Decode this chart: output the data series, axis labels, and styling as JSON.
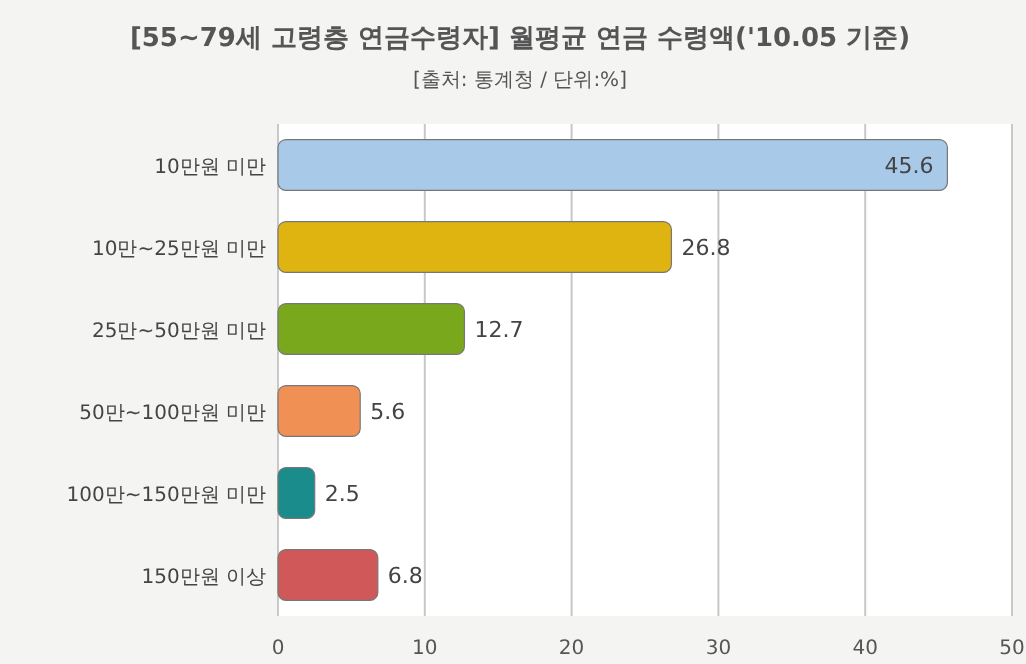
{
  "chart_data": {
    "type": "bar",
    "orientation": "horizontal",
    "title": "[55~79세 고령층 연금수령자] 월평균 연금 수령액('10.05 기준)",
    "subtitle": "[출처: 통계청 / 단위:%]",
    "categories": [
      "10만원 미만",
      "10만~25만원 미만",
      "25만~50만원 미만",
      "50만~100만원 미만",
      "100만~150만원 미만",
      "150만원 이상"
    ],
    "values": [
      45.6,
      26.8,
      12.7,
      5.6,
      2.5,
      6.8
    ],
    "colors": [
      "#a9c9e8",
      "#e0b410",
      "#7aa81c",
      "#f09055",
      "#1a8c8c",
      "#d05858"
    ],
    "xlim": [
      0,
      50
    ],
    "xticks": [
      0,
      10,
      20,
      30,
      40,
      50
    ],
    "grid": "x",
    "data_labels": true
  }
}
